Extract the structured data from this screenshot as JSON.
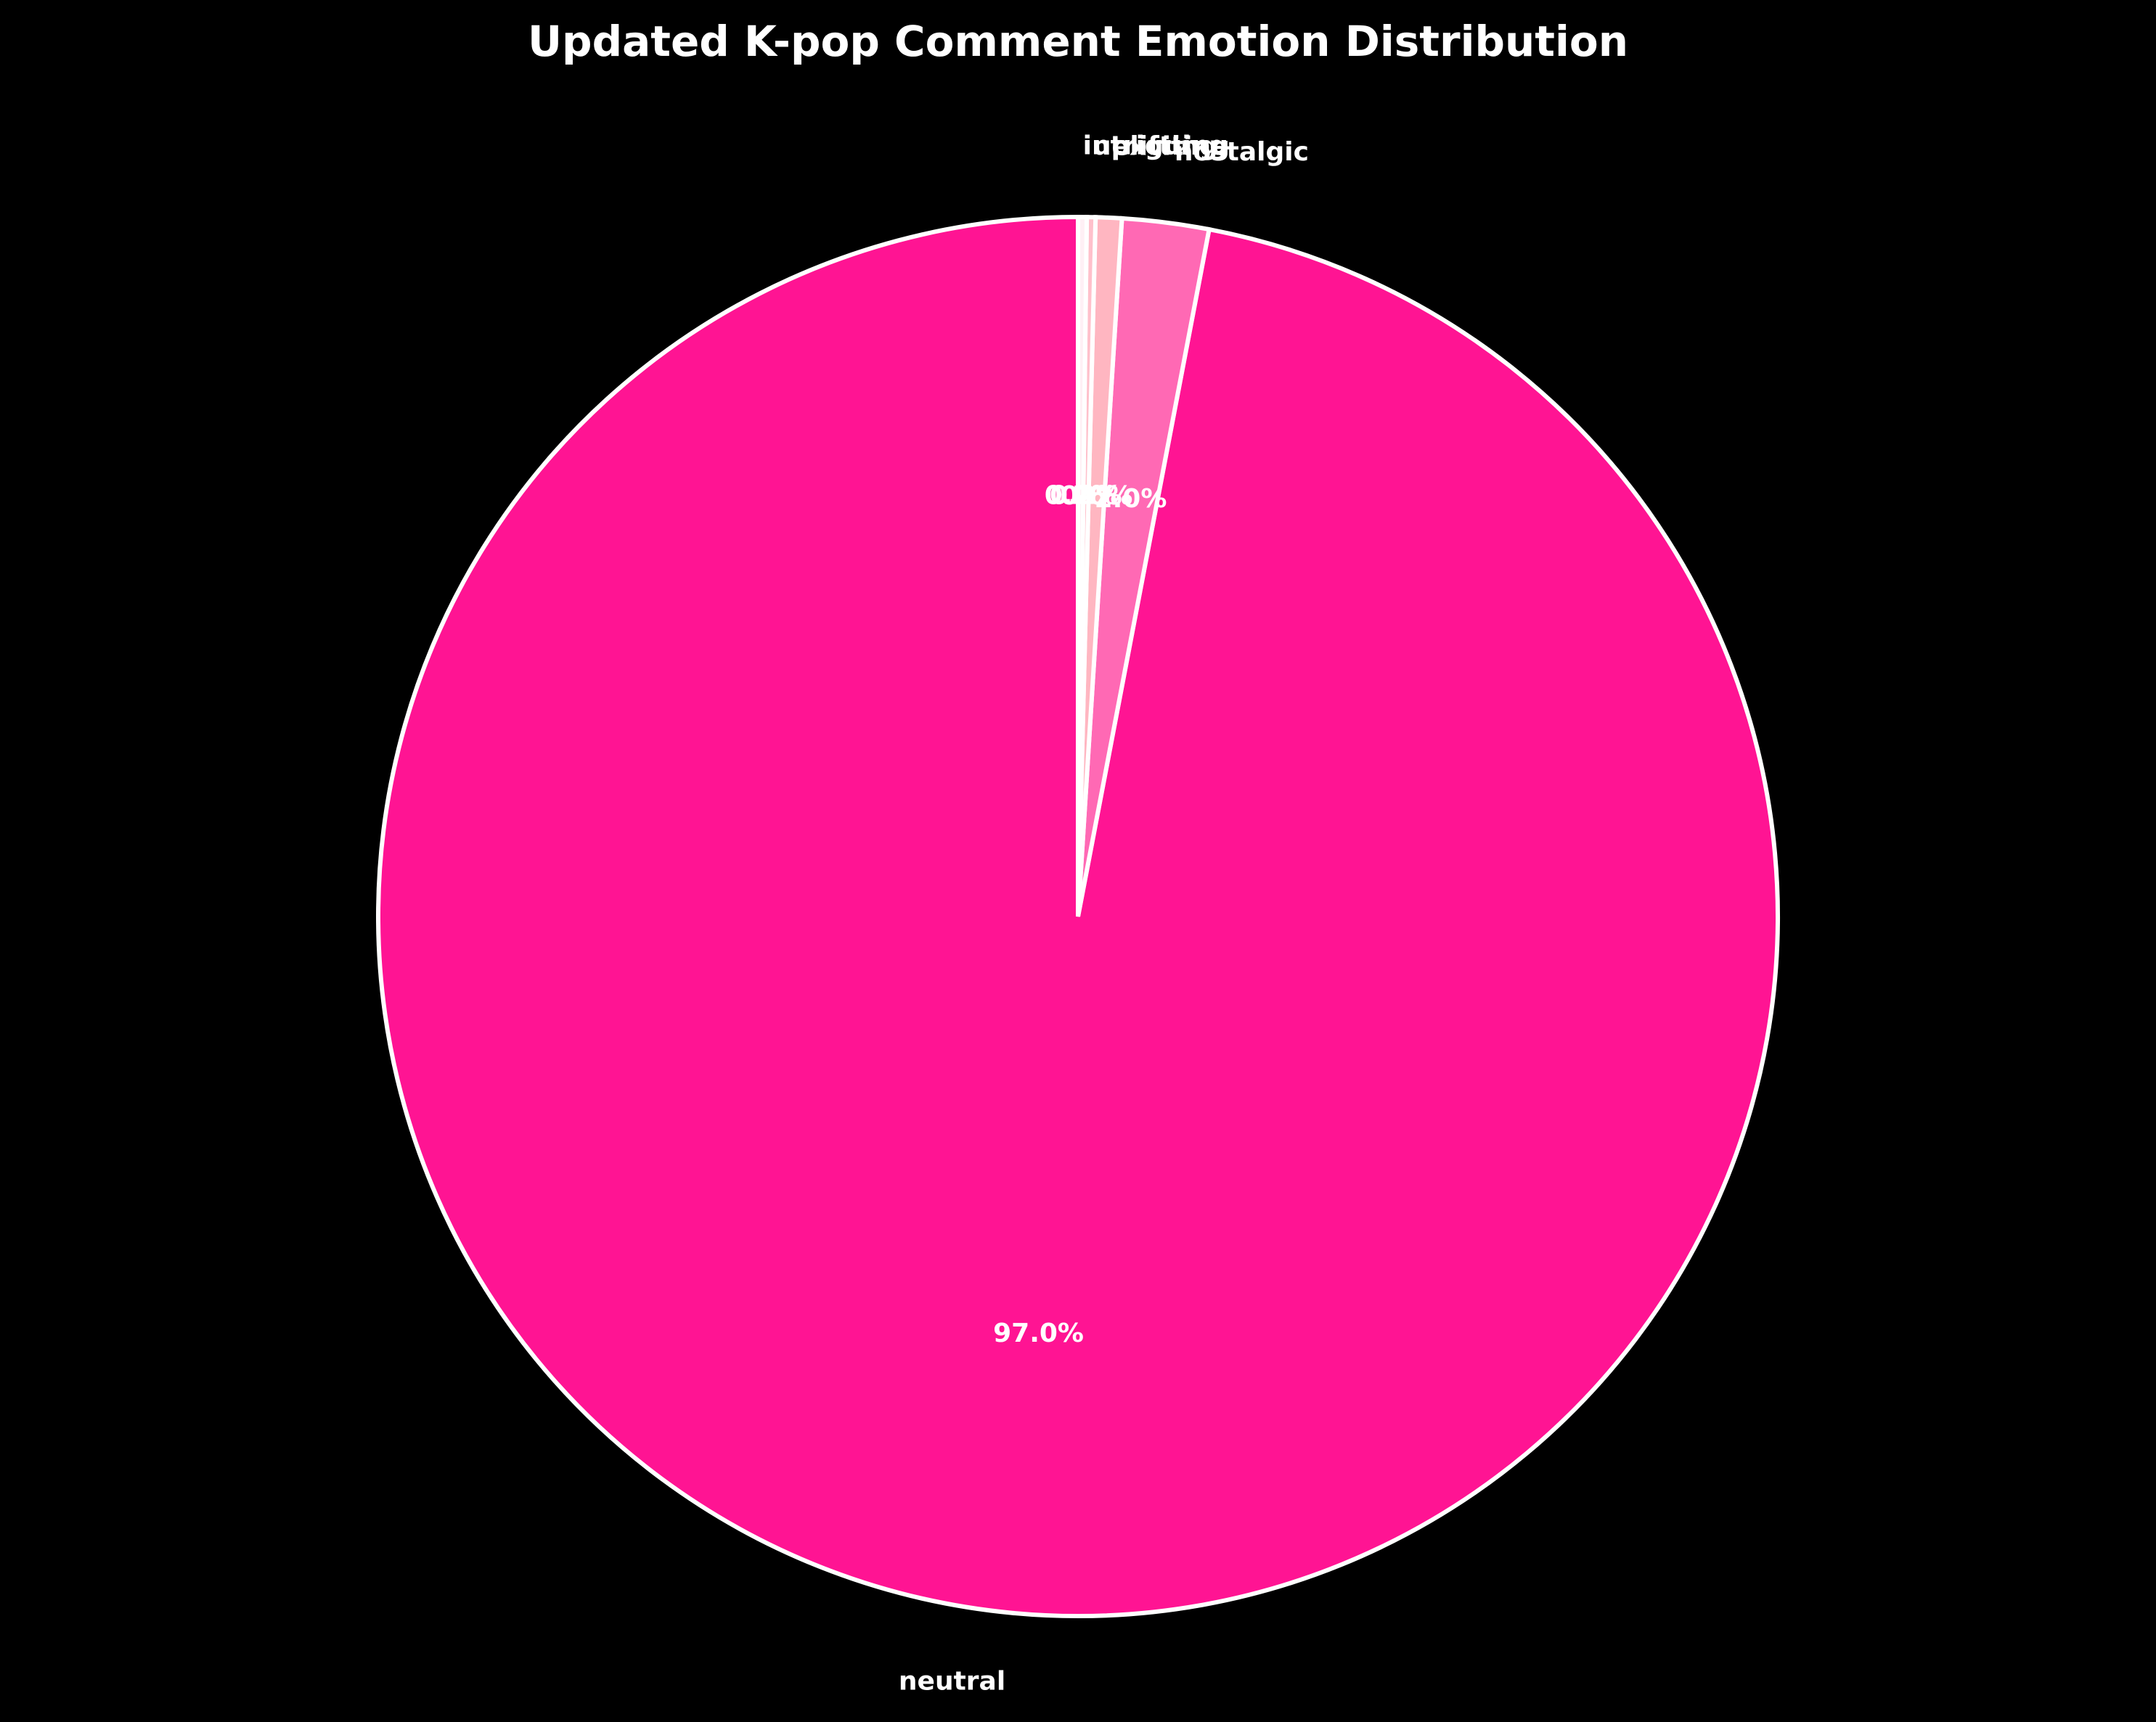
{
  "chart_data": {
    "type": "pie",
    "title": "Updated K-pop Comment Emotion Distribution",
    "categories": [
      "neutral",
      "nostalgic",
      "exciting",
      "uplifting",
      "intriguing"
    ],
    "values": [
      97.0,
      2.0,
      0.6,
      0.2,
      0.2
    ],
    "value_labels": [
      "97.0%",
      "2.0%",
      "0.6%",
      "0.2%",
      "0.2%"
    ],
    "colors": [
      "#ff1493",
      "#ff69b4",
      "#ffb6c1",
      "#ffc0cb",
      "#fff0f5"
    ],
    "start_angle": 90
  }
}
